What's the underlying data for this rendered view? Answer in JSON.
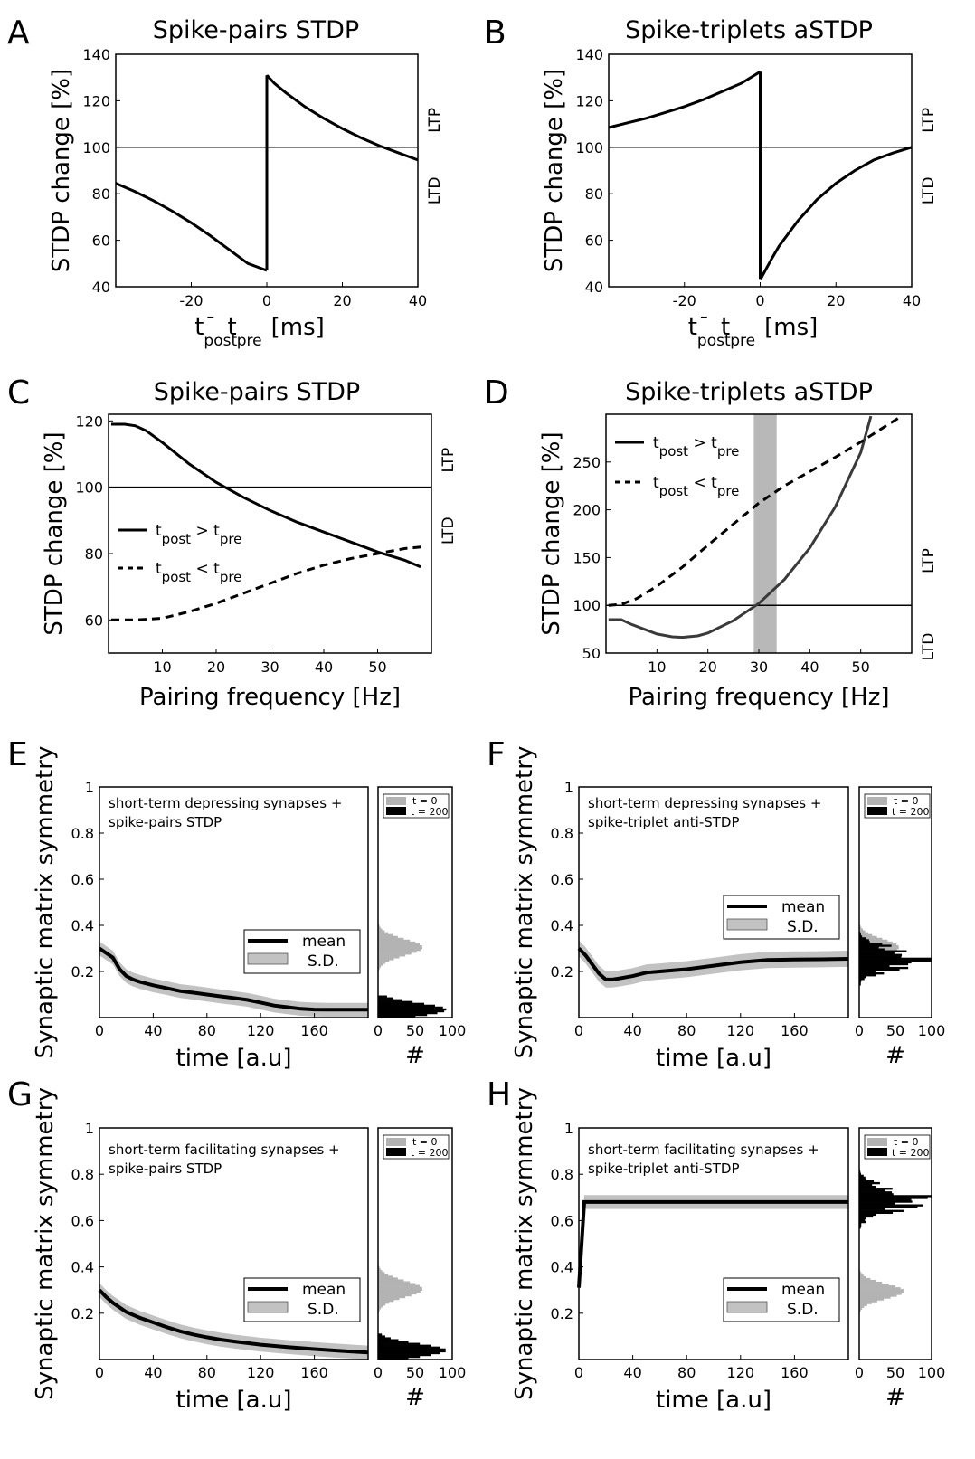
{
  "colors": {
    "sd_band": "#c2c2c2",
    "shade": "#b8b8b8",
    "hist_t0": "#b3b3b3",
    "hist_t200": "#000000",
    "curve_D": "#3a3a3a"
  },
  "chart_data": [
    {
      "id": "A",
      "panel_label": "A",
      "type": "line",
      "title": "Spike-pairs STDP",
      "xlabel": {
        "t1": "t",
        "s1": "post",
        "minus": "-",
        "t2": "t",
        "s2": "pre",
        "unit": "[ms]"
      },
      "ylabel": "STDP change [%]",
      "xlim": [
        -40,
        40
      ],
      "ylim": [
        40,
        140
      ],
      "xticks": [
        -20,
        0,
        20,
        40
      ],
      "yticks": [
        40,
        60,
        80,
        100,
        120,
        140
      ],
      "side_labels": {
        "upper": "LTP",
        "lower": "LTD"
      },
      "reference_y": 100,
      "series": [
        {
          "style": "solid",
          "points": [
            [
              -40,
              84.5
            ],
            [
              -35,
              81
            ],
            [
              -30,
              77
            ],
            [
              -25,
              72.5
            ],
            [
              -20,
              67.5
            ],
            [
              -15,
              62
            ],
            [
              -10,
              56
            ],
            [
              -5,
              50
            ],
            [
              0,
              47
            ]
          ]
        },
        {
          "style": "solid",
          "points": [
            [
              0,
              131
            ],
            [
              2,
              127.5
            ],
            [
              5,
              123.5
            ],
            [
              10,
              117.5
            ],
            [
              15,
              112.5
            ],
            [
              20,
              108
            ],
            [
              25,
              104
            ],
            [
              30,
              100.5
            ],
            [
              35,
              97.5
            ],
            [
              40,
              94.5
            ]
          ]
        },
        {
          "style": "solid",
          "points": [
            [
              0,
              47
            ],
            [
              0,
              131
            ]
          ]
        }
      ]
    },
    {
      "id": "B",
      "panel_label": "B",
      "type": "line",
      "title": "Spike-triplets aSTDP",
      "xlabel": {
        "t1": "t",
        "s1": "post",
        "minus": "-",
        "t2": "t",
        "s2": "pre",
        "unit": "[ms]"
      },
      "ylabel": "STDP change [%]",
      "xlim": [
        -40,
        40
      ],
      "ylim": [
        40,
        140
      ],
      "xticks": [
        -20,
        0,
        20,
        40
      ],
      "yticks": [
        40,
        60,
        80,
        100,
        120,
        140
      ],
      "side_labels": {
        "upper": "LTP",
        "lower": "LTD"
      },
      "reference_y": 100,
      "series": [
        {
          "style": "solid",
          "points": [
            [
              -40,
              108.5
            ],
            [
              -35,
              110.5
            ],
            [
              -30,
              112.5
            ],
            [
              -25,
              115
            ],
            [
              -20,
              117.5
            ],
            [
              -15,
              120.5
            ],
            [
              -10,
              124
            ],
            [
              -5,
              127.5
            ],
            [
              0,
              132.5
            ]
          ]
        },
        {
          "style": "solid",
          "points": [
            [
              0,
              43
            ],
            [
              1,
              46
            ],
            [
              3,
              52
            ],
            [
              5,
              57.5
            ],
            [
              10,
              68.5
            ],
            [
              15,
              77.5
            ],
            [
              20,
              84.5
            ],
            [
              25,
              90
            ],
            [
              30,
              94.5
            ],
            [
              35,
              97.5
            ],
            [
              40,
              100
            ]
          ]
        },
        {
          "style": "solid",
          "points": [
            [
              0,
              132.5
            ],
            [
              0,
              43
            ]
          ]
        }
      ]
    },
    {
      "id": "C",
      "panel_label": "C",
      "type": "line",
      "title": "Spike-pairs STDP",
      "xlabel": "Pairing frequency [Hz]",
      "ylabel": "STDP change [%]",
      "xlim": [
        0,
        60
      ],
      "ylim": [
        50,
        122
      ],
      "xticks": [
        10,
        20,
        30,
        40,
        50
      ],
      "yticks": [
        60,
        80,
        100,
        120
      ],
      "side_labels": {
        "upper": "LTP",
        "lower": "LTD"
      },
      "reference_y": 100,
      "legend": [
        {
          "style": "solid",
          "t1": "t",
          "s1": "post",
          "op": " > ",
          "t2": "t",
          "s2": "pre"
        },
        {
          "style": "dashed",
          "t1": "t",
          "s1": "post",
          "op": " < ",
          "t2": "t",
          "s2": "pre"
        }
      ],
      "series": [
        {
          "style": "solid",
          "points": [
            [
              0.5,
              119
            ],
            [
              3,
              119
            ],
            [
              5,
              118.5
            ],
            [
              7,
              117
            ],
            [
              10,
              113.5
            ],
            [
              15,
              107
            ],
            [
              20,
              101.5
            ],
            [
              25,
              97
            ],
            [
              30,
              93
            ],
            [
              35,
              89.5
            ],
            [
              40,
              86.5
            ],
            [
              45,
              83.5
            ],
            [
              50,
              80.5
            ],
            [
              55,
              78
            ],
            [
              58,
              76
            ]
          ]
        },
        {
          "style": "dashed",
          "points": [
            [
              0.5,
              60
            ],
            [
              5,
              60
            ],
            [
              10,
              60.5
            ],
            [
              15,
              62.5
            ],
            [
              20,
              65
            ],
            [
              25,
              68
            ],
            [
              30,
              71
            ],
            [
              35,
              74
            ],
            [
              40,
              76.5
            ],
            [
              45,
              78.5
            ],
            [
              50,
              80
            ],
            [
              55,
              81.5
            ],
            [
              58,
              82
            ]
          ]
        }
      ]
    },
    {
      "id": "D",
      "panel_label": "D",
      "type": "line",
      "title": "Spike-triplets aSTDP",
      "xlabel": "Pairing frequency [Hz]",
      "ylabel": "STDP change [%]",
      "xlim": [
        0,
        60
      ],
      "ylim": [
        50,
        300
      ],
      "xticks": [
        10,
        20,
        30,
        40,
        50
      ],
      "yticks": [
        50,
        100,
        150,
        200,
        250
      ],
      "side_labels": {
        "upper": "LTP",
        "lower": "LTD"
      },
      "reference_y": 100,
      "highlight_band": [
        29,
        33.5
      ],
      "legend": [
        {
          "style": "solid",
          "t1": "t",
          "s1": "post",
          "op": " > ",
          "t2": "t",
          "s2": "pre"
        },
        {
          "style": "dashed",
          "t1": "t",
          "s1": "post",
          "op": " < ",
          "t2": "t",
          "s2": "pre"
        }
      ],
      "series": [
        {
          "style": "solid",
          "points": [
            [
              0.5,
              85
            ],
            [
              3,
              85
            ],
            [
              5,
              80
            ],
            [
              8,
              74
            ],
            [
              10,
              70
            ],
            [
              13,
              67
            ],
            [
              15,
              66.5
            ],
            [
              18,
              68
            ],
            [
              20,
              71
            ],
            [
              25,
              84
            ],
            [
              30,
              102
            ],
            [
              35,
              127
            ],
            [
              40,
              160
            ],
            [
              45,
              203
            ],
            [
              50,
              260
            ],
            [
              52,
              298
            ]
          ]
        },
        {
          "style": "dashed",
          "points": [
            [
              0.5,
              100
            ],
            [
              3,
              101
            ],
            [
              6,
              107
            ],
            [
              10,
              120
            ],
            [
              15,
              140
            ],
            [
              20,
              163
            ],
            [
              25,
              185
            ],
            [
              30,
              207
            ],
            [
              35,
              225
            ],
            [
              40,
              240
            ],
            [
              45,
              255
            ],
            [
              50,
              271
            ],
            [
              55,
              288
            ],
            [
              58,
              298
            ]
          ]
        }
      ]
    },
    {
      "id": "E",
      "panel_label": "E",
      "type": "line",
      "annotation": [
        "short-term depressing synapses +",
        "spike-pairs STDP"
      ],
      "xlabel": "time [a.u]",
      "ylabel": "Synaptic matrix symmetry",
      "xlim": [
        0,
        200
      ],
      "ylim": [
        0,
        1
      ],
      "xticks": [
        0,
        40,
        80,
        120,
        160
      ],
      "yticks": [
        0.2,
        0.4,
        0.6,
        0.8,
        1
      ],
      "legend": [
        "mean",
        "S.D."
      ],
      "legend_pos": "lower-right",
      "mean": [
        [
          0,
          0.3
        ],
        [
          5,
          0.28
        ],
        [
          10,
          0.26
        ],
        [
          15,
          0.21
        ],
        [
          20,
          0.18
        ],
        [
          25,
          0.165
        ],
        [
          30,
          0.155
        ],
        [
          40,
          0.14
        ],
        [
          50,
          0.128
        ],
        [
          60,
          0.115
        ],
        [
          70,
          0.108
        ],
        [
          80,
          0.1
        ],
        [
          90,
          0.092
        ],
        [
          100,
          0.085
        ],
        [
          110,
          0.077
        ],
        [
          120,
          0.065
        ],
        [
          130,
          0.052
        ],
        [
          140,
          0.045
        ],
        [
          150,
          0.038
        ],
        [
          160,
          0.035
        ],
        [
          170,
          0.034
        ],
        [
          180,
          0.034
        ],
        [
          190,
          0.034
        ],
        [
          200,
          0.034
        ]
      ],
      "sd": 0.03,
      "histogram": {
        "xlabel": "#",
        "xticks": [
          0,
          50,
          100
        ],
        "xlim": [
          0,
          100
        ],
        "legend": [
          "t = 0",
          "t = 200"
        ],
        "t0": {
          "center": 0.305,
          "width": 0.05,
          "peak": 60,
          "range": [
            0.17,
            0.45
          ]
        },
        "t200": {
          "center": 0.035,
          "width": 0.04,
          "peak": 92,
          "range": [
            0.0,
            0.09
          ]
        }
      }
    },
    {
      "id": "F",
      "panel_label": "F",
      "type": "line",
      "annotation": [
        "short-term depressing synapses +",
        "spike-triplet anti-STDP"
      ],
      "xlabel": "time [a.u]",
      "ylabel": "Synaptic matrix symmetry",
      "xlim": [
        0,
        200
      ],
      "ylim": [
        0,
        1
      ],
      "xticks": [
        0,
        40,
        80,
        120,
        160
      ],
      "yticks": [
        0.2,
        0.4,
        0.6,
        0.8,
        1
      ],
      "legend": [
        "mean",
        "S.D."
      ],
      "legend_pos": "middle-right",
      "mean": [
        [
          0,
          0.3
        ],
        [
          5,
          0.27
        ],
        [
          10,
          0.23
        ],
        [
          15,
          0.19
        ],
        [
          20,
          0.165
        ],
        [
          25,
          0.165
        ],
        [
          30,
          0.17
        ],
        [
          40,
          0.18
        ],
        [
          50,
          0.195
        ],
        [
          60,
          0.2
        ],
        [
          80,
          0.21
        ],
        [
          100,
          0.225
        ],
        [
          120,
          0.24
        ],
        [
          140,
          0.25
        ],
        [
          160,
          0.252
        ],
        [
          180,
          0.253
        ],
        [
          200,
          0.255
        ]
      ],
      "sd": 0.035,
      "histogram": {
        "xlabel": "#",
        "xticks": [
          0,
          50,
          100
        ],
        "xlim": [
          0,
          100
        ],
        "legend": [
          "t = 0",
          "t = 200"
        ],
        "t0": {
          "center": 0.305,
          "width": 0.05,
          "peak": 55,
          "range": [
            0.17,
            0.45
          ]
        },
        "t200": {
          "center": 0.255,
          "width": 0.055,
          "peak": 95,
          "range": [
            0.1,
            0.4
          ]
        }
      }
    },
    {
      "id": "G",
      "panel_label": "G",
      "type": "line",
      "annotation": [
        "short-term facilitating synapses +",
        "spike-pairs STDP"
      ],
      "xlabel": "time [a.u]",
      "ylabel": "Synaptic matrix symmetry",
      "xlim": [
        0,
        200
      ],
      "ylim": [
        0,
        1
      ],
      "xticks": [
        0,
        40,
        80,
        120,
        160
      ],
      "yticks": [
        0.2,
        0.4,
        0.6,
        0.8,
        1
      ],
      "legend": [
        "mean",
        "S.D."
      ],
      "legend_pos": "lower-right",
      "mean": [
        [
          0,
          0.3
        ],
        [
          5,
          0.27
        ],
        [
          10,
          0.245
        ],
        [
          20,
          0.205
        ],
        [
          30,
          0.18
        ],
        [
          40,
          0.16
        ],
        [
          50,
          0.14
        ],
        [
          60,
          0.122
        ],
        [
          70,
          0.108
        ],
        [
          80,
          0.096
        ],
        [
          90,
          0.086
        ],
        [
          100,
          0.078
        ],
        [
          120,
          0.064
        ],
        [
          140,
          0.054
        ],
        [
          160,
          0.045
        ],
        [
          180,
          0.037
        ],
        [
          200,
          0.03
        ]
      ],
      "sd": 0.03,
      "histogram": {
        "xlabel": "#",
        "xticks": [
          0,
          50,
          100
        ],
        "xlim": [
          0,
          100
        ],
        "legend": [
          "t = 0",
          "t = 200"
        ],
        "t0": {
          "center": 0.305,
          "width": 0.05,
          "peak": 60,
          "range": [
            0.17,
            0.45
          ]
        },
        "t200": {
          "center": 0.04,
          "width": 0.04,
          "peak": 92,
          "range": [
            0.0,
            0.11
          ]
        }
      }
    },
    {
      "id": "H",
      "panel_label": "H",
      "type": "line",
      "annotation": [
        "short-term facilitating synapses +",
        "spike-triplet anti-STDP"
      ],
      "xlabel": "time [a.u]",
      "ylabel": "Synaptic matrix symmetry",
      "xlim": [
        0,
        200
      ],
      "ylim": [
        0,
        1
      ],
      "xticks": [
        0,
        40,
        80,
        120,
        160
      ],
      "yticks": [
        0.2,
        0.4,
        0.6,
        0.8,
        1
      ],
      "legend": [
        "mean",
        "S.D."
      ],
      "legend_pos": "lower-right",
      "mean": [
        [
          0,
          0.31
        ],
        [
          4,
          0.68
        ],
        [
          10,
          0.68
        ],
        [
          50,
          0.68
        ],
        [
          100,
          0.68
        ],
        [
          150,
          0.68
        ],
        [
          200,
          0.68
        ]
      ],
      "sd": 0.03,
      "histogram": {
        "xlabel": "#",
        "xticks": [
          0,
          50,
          100
        ],
        "xlim": [
          0,
          100
        ],
        "legend": [
          "t = 0",
          "t = 200"
        ],
        "t0": {
          "center": 0.295,
          "width": 0.045,
          "peak": 62,
          "range": [
            0.16,
            0.44
          ]
        },
        "t200": {
          "center": 0.69,
          "width": 0.06,
          "peak": 88,
          "range": [
            0.55,
            0.82
          ]
        }
      }
    }
  ]
}
